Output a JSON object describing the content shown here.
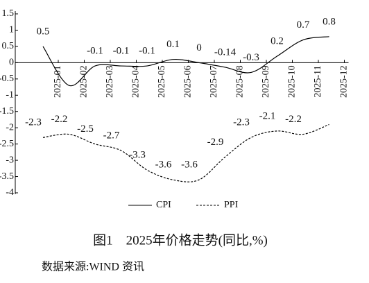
{
  "chart_data": {
    "type": "line",
    "title": "图1　2025年价格走势(同比,%)",
    "source": "数据来源:WIND 资讯",
    "categories": [
      "2025-01",
      "2025-02",
      "2025-03",
      "2025-04",
      "2025-05",
      "2025-06",
      "2025-07",
      "2025-08",
      "2025-09",
      "2025-10",
      "2025-11",
      "2025-12"
    ],
    "series": [
      {
        "name": "CPI",
        "color": "#000000",
        "dash": "solid",
        "values": [
          0.5,
          -0.7,
          -0.1,
          -0.1,
          -0.1,
          0.1,
          0,
          -0.14,
          -0.3,
          0.2,
          0.7,
          0.8
        ],
        "value_labels": [
          "0.5",
          null,
          "-0.1",
          "-0.1",
          "-0.1",
          "0.1",
          "0",
          "-0.14",
          "-0.3",
          "0.2",
          "0.7",
          "0.8"
        ]
      },
      {
        "name": "PPI",
        "color": "#000000",
        "dash": "dashed",
        "values": [
          -2.3,
          -2.2,
          -2.5,
          -2.7,
          -3.3,
          -3.6,
          -3.6,
          -2.9,
          -2.3,
          -2.1,
          -2.2,
          -1.9
        ],
        "value_labels": [
          "-2.3",
          "-2.2",
          "-2.5",
          "-2.7",
          "-3.3",
          "-3.6",
          "-3.6",
          "-2.9",
          "-2.3",
          "-2.1",
          "-2.2",
          null
        ]
      }
    ],
    "ylim": [
      -4,
      1.5
    ],
    "yticks": [
      1.5,
      1,
      0.5,
      0,
      -0.5,
      -1,
      -1.5,
      -2,
      -2.5,
      -3,
      -3.5,
      -4
    ],
    "grid": false,
    "legend": "bottom"
  }
}
